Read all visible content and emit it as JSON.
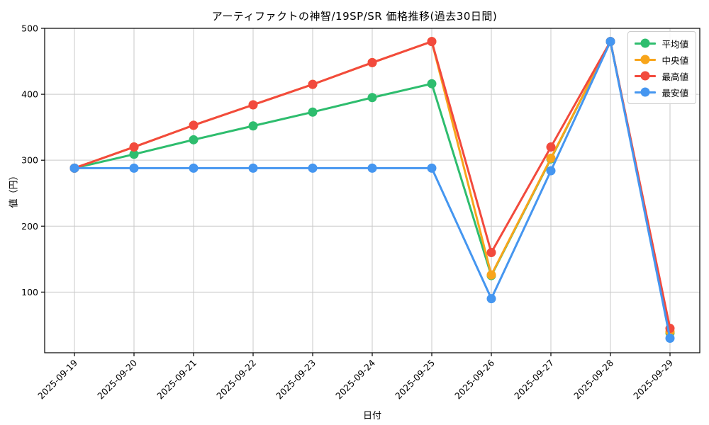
{
  "chart_data": {
    "type": "line",
    "title": "アーティファクトの神智/19SP/SR 価格推移(過去30日間)",
    "xlabel": "日付",
    "ylabel": "値（円）",
    "x": [
      "2025-09-19",
      "2025-09-20",
      "2025-09-21",
      "2025-09-22",
      "2025-09-23",
      "2025-09-24",
      "2025-09-25",
      "2025-09-26",
      "2025-09-27",
      "2025-09-28",
      "2025-09-29"
    ],
    "series": [
      {
        "name": "平均値",
        "color": "#2ebd6e",
        "values": [
          288,
          309,
          331,
          352,
          373,
          395,
          416,
          125,
          302,
          480,
          38
        ]
      },
      {
        "name": "中央値",
        "color": "#f8a51b",
        "values": [
          288,
          320,
          353,
          384,
          415,
          448,
          480,
          126,
          303,
          480,
          40
        ]
      },
      {
        "name": "最高値",
        "color": "#f24a3d",
        "values": [
          288,
          320,
          353,
          384,
          415,
          448,
          480,
          160,
          320,
          480,
          45
        ]
      },
      {
        "name": "最安値",
        "color": "#4596f0",
        "values": [
          288,
          288,
          288,
          288,
          288,
          288,
          288,
          90,
          284,
          480,
          30
        ]
      }
    ],
    "ylim": [
      8,
      500
    ],
    "yticks": [
      100,
      200,
      300,
      400,
      500
    ],
    "grid": true,
    "grid_color": "#c9c9c9",
    "axis_color": "#000000",
    "background": "#ffffff",
    "legend_position": "upper-right",
    "x_tick_rotation": -45
  }
}
